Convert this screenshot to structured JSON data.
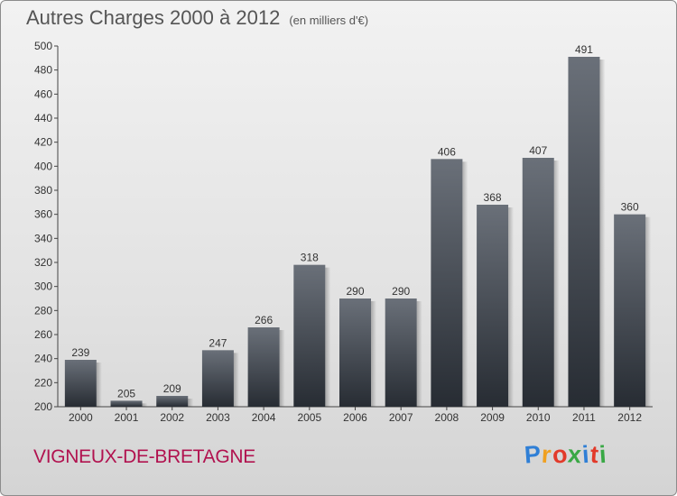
{
  "header": {
    "title": "Autres Charges 2000 à 2012",
    "subtitle": "(en milliers d'€)"
  },
  "footer": {
    "commune": "VIGNEUX-DE-BRETAGNE",
    "logo": {
      "letters": [
        "P",
        "r",
        "o",
        "x",
        "i",
        "t",
        "i"
      ],
      "colors": [
        "#2f7fd6",
        "#f0a020",
        "#e23a2a",
        "#39a845",
        "#2f7fd6",
        "#e23a2a",
        "#39a845"
      ]
    }
  },
  "chart_data": {
    "type": "bar",
    "categories": [
      "2000",
      "2001",
      "2002",
      "2003",
      "2004",
      "2005",
      "2006",
      "2007",
      "2008",
      "2009",
      "2010",
      "2011",
      "2012"
    ],
    "values": [
      239,
      205,
      209,
      247,
      266,
      318,
      290,
      290,
      406,
      368,
      407,
      491,
      360
    ],
    "ylim": [
      200,
      500
    ],
    "yticks": [
      200,
      220,
      240,
      260,
      280,
      300,
      320,
      340,
      360,
      380,
      400,
      420,
      440,
      460,
      480,
      500
    ],
    "grid": false,
    "bar_color": "#3e434a"
  }
}
